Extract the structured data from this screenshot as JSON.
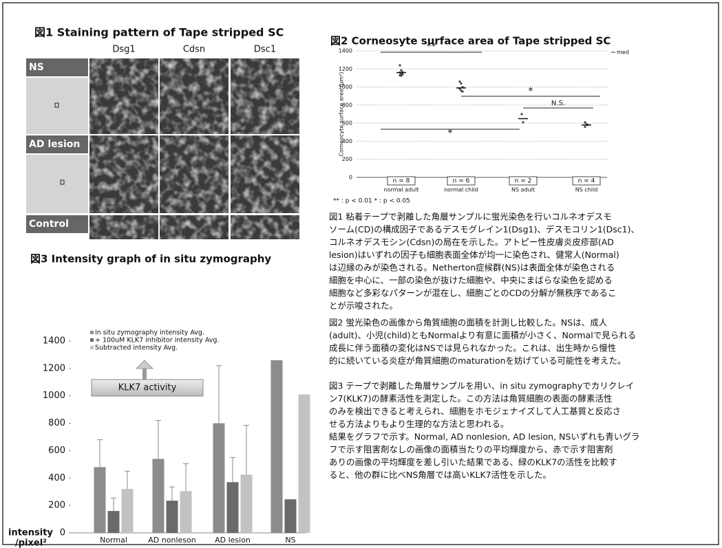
{
  "figure1": {
    "title": "図1 Staining pattern of Tape stripped SC",
    "columns": [
      "Dsg1",
      "Cdsn",
      "Dsc1"
    ],
    "rows": [
      "NS",
      "AD lesion",
      "Control"
    ]
  },
  "chart_data": [
    {
      "type": "scatter",
      "title": "図2 Corneosyte surface area of Tape stripped SC",
      "ylabel": "Corneocyte surface area (μm²)",
      "categories": [
        "normal adult",
        "normal child",
        "NS adult",
        "NS child"
      ],
      "n_labels": [
        "n = 8",
        "n = 6",
        "n = 2",
        "n = 4"
      ],
      "points": [
        [
          1240,
          1185,
          1165,
          1160,
          1150,
          1140,
          1130,
          1125
        ],
        [
          1060,
          1040,
          1000,
          980,
          960,
          950
        ],
        [
          700,
          610
        ],
        [
          610,
          590,
          580,
          560
        ]
      ],
      "medians": [
        1160,
        990,
        650,
        580
      ],
      "median_label": "med",
      "significance": [
        "**",
        "*",
        "N.S.",
        "*"
      ],
      "footnote": "** : p < 0.01   * : p < 0.05",
      "ylim": [
        0,
        1400
      ],
      "yticks": [
        0,
        200,
        400,
        600,
        800,
        1000,
        1200,
        1400
      ],
      "grid": true
    },
    {
      "type": "bar",
      "title": "図3 Intensity graph of in situ zymography",
      "ylabel": [
        "intensity",
        "/pixel²"
      ],
      "categories": [
        "Normal",
        "AD nonleson",
        "AD lesion",
        "NS"
      ],
      "series": [
        {
          "name": "in situ zymography intensity Avg.",
          "color": "#8c8c8c",
          "values": [
            480,
            540,
            800,
            1260
          ],
          "errors": [
            200,
            280,
            420,
            null
          ]
        },
        {
          "name": "+ 100uM KLK7 inhibitor intensity Avg.",
          "color": "#6a6a6a",
          "values": [
            160,
            235,
            370,
            245
          ],
          "errors": [
            95,
            100,
            180,
            null
          ]
        },
        {
          "name": "Subtracted intensity Avg.",
          "color": "#c2c2c2",
          "values": [
            320,
            305,
            425,
            1010
          ],
          "errors": [
            130,
            200,
            360,
            null
          ]
        }
      ],
      "annotation": "KLK7 activity",
      "ylim": [
        0,
        1400
      ],
      "yticks": [
        0,
        200,
        400,
        600,
        800,
        1000,
        1200,
        1400
      ]
    }
  ],
  "paragraphs": [
    [
      "図1 粘着テープで剥離した角層サンプルに蛍光染色を行いコルネオデスモ",
      "ソーム(CD)の構成因子であるデスモグレイン1(Dsg1)、デスモコリン1(Dsc1)、",
      "コルネオデスモシン(Cdsn)の局在を示した。アトピー性皮膚炎皮疹部(AD",
      "lesion)はいずれの因子も細胞表面全体が均一に染色され、健常人(Normal)",
      "は辺縁のみが染色される。Netherton症候群(NS)は表面全体が染色される",
      "細胞を中心に、一部の染色が抜けた細胞や、中央にまばらな染色を認める",
      "細胞など多彩なパターンが混在し、細胞ごとのCDの分解が無秩序であるこ",
      "とが示唆された。"
    ],
    [
      "図2 蛍光染色の画像から角質細胞の面積を計測し比較した。NSは、成人",
      "(adult)、小児(child)ともNormalより有意に面積が小さく、Normalで見られる",
      "成長に伴う面積の変化はNSでは見られなかった。これは、出生時から慢性",
      "的に続いている炎症が角質細胞のmaturationを妨げている可能性を考えた。"
    ],
    [
      "図3 テープで剥離した角層サンプルを用い、in situ zymographyでカリクレイ",
      "ン7(KLK7)の酵素活性を測定した。この方法は角質細胞の表面の酵素活性",
      "のみを検出できると考えられ、細胞をホモジェナイズして人工基質と反応さ",
      "せる方法よりもより生理的な方法と思われる。",
      "結果をグラフで示す。Normal, AD nonlesion, AD lesion, NSいずれも青いグラ",
      "フで示す阻害剤なしの画像の面積当たりの平均輝度から、赤で示す阻害剤",
      "ありの画像の平均輝度を差し引いた結果である、緑のKLK7の活性を比較す",
      "ると、他の群に比べNS角層では高いKLK7活性を示した。"
    ]
  ]
}
